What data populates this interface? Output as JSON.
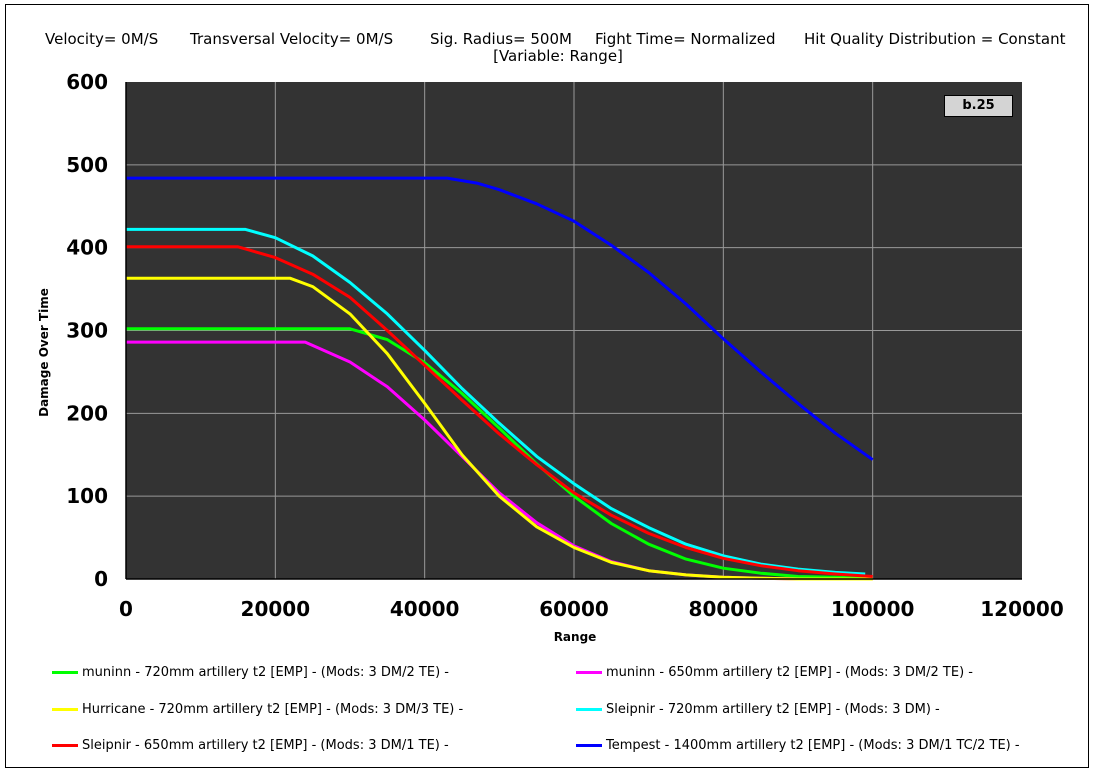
{
  "header": {
    "velocity": "Velocity= 0M/S",
    "transversal_velocity": "Transversal Velocity= 0M/S",
    "sig_radius": "Sig. Radius= 500M",
    "fight_time": "Fight Time= Normalized",
    "hit_quality": "Hit Quality Distribution = Constant",
    "variable_note": "[Variable: Range]"
  },
  "version_label": "b.25",
  "colors": {
    "plot_background": "#333333",
    "grid": "#999999"
  },
  "chart_data": {
    "type": "line",
    "xlabel": "Range",
    "ylabel": "Damage Over Time",
    "xlim": [
      0,
      120000
    ],
    "ylim": [
      0,
      600
    ],
    "x_ticks": [
      "0",
      "20000",
      "40000",
      "60000",
      "80000",
      "100000",
      "120000"
    ],
    "y_ticks": [
      "0",
      "100",
      "200",
      "300",
      "400",
      "500",
      "600"
    ],
    "grid": true,
    "legend_position": "bottom",
    "series": [
      {
        "name": "muninn - 720mm artillery t2 [EMP] - (Mods: 3 DM/2 TE) -",
        "color": "#00ff00",
        "x": [
          0,
          30000,
          35000,
          40000,
          45000,
          50000,
          55000,
          60000,
          65000,
          70000,
          75000,
          80000,
          85000,
          90000,
          95000,
          100000
        ],
        "y": [
          302,
          302,
          289,
          261,
          224,
          182,
          139,
          100,
          67,
          42,
          24,
          13,
          7,
          3,
          2,
          1
        ]
      },
      {
        "name": "muninn - 650mm artillery t2 [EMP] - (Mods: 3 DM/2 TE) -",
        "color": "#ff00ff",
        "x": [
          0,
          24000,
          30000,
          35000,
          40000,
          45000,
          50000,
          55000,
          60000,
          65000,
          70000,
          75000,
          80000,
          85000,
          90000,
          95000,
          100000
        ],
        "y": [
          286,
          286,
          262,
          232,
          192,
          148,
          104,
          68,
          40,
          21,
          10,
          5,
          2,
          1,
          0,
          0,
          0
        ]
      },
      {
        "name": "Hurricane - 720mm artillery t2 [EMP] - (Mods: 3 DM/3 TE) -",
        "color": "#ffff00",
        "x": [
          0,
          22000,
          25000,
          30000,
          35000,
          40000,
          45000,
          50000,
          55000,
          60000,
          65000,
          70000,
          75000,
          80000,
          85000,
          90000,
          95000,
          100000
        ],
        "y": [
          363,
          363,
          353,
          320,
          272,
          212,
          150,
          100,
          63,
          38,
          20,
          10,
          5,
          2,
          1,
          0,
          0,
          0
        ]
      },
      {
        "name": "Sleipnir - 720mm artillery t2 [EMP] - (Mods: 3 DM) -",
        "color": "#00ffff",
        "x": [
          0,
          16000,
          20000,
          25000,
          30000,
          35000,
          40000,
          45000,
          50000,
          55000,
          60000,
          65000,
          70000,
          75000,
          80000,
          85000,
          90000,
          95000,
          99000
        ],
        "y": [
          422,
          422,
          412,
          390,
          358,
          320,
          276,
          230,
          188,
          148,
          115,
          85,
          62,
          42,
          28,
          18,
          12,
          8,
          6
        ]
      },
      {
        "name": "Sleipnir - 650mm artillery t2 [EMP] - (Mods: 3 DM/1 TE) -",
        "color": "#ff0000",
        "x": [
          0,
          15000,
          20000,
          25000,
          30000,
          35000,
          40000,
          45000,
          50000,
          55000,
          60000,
          65000,
          70000,
          75000,
          80000,
          85000,
          90000,
          95000,
          100000
        ],
        "y": [
          401,
          401,
          388,
          368,
          340,
          300,
          258,
          216,
          175,
          138,
          104,
          77,
          55,
          38,
          25,
          16,
          10,
          6,
          3
        ]
      },
      {
        "name": "Tempest - 1400mm artillery t2 [EMP] - (Mods: 3 DM/1 TC/2 TE) -",
        "color": "#0000ff",
        "x": [
          0,
          43000,
          47000,
          50000,
          55000,
          60000,
          65000,
          70000,
          75000,
          80000,
          85000,
          90000,
          95000,
          100000
        ],
        "y": [
          484,
          484,
          478,
          470,
          453,
          432,
          403,
          370,
          332,
          290,
          250,
          212,
          176,
          144
        ]
      }
    ]
  }
}
